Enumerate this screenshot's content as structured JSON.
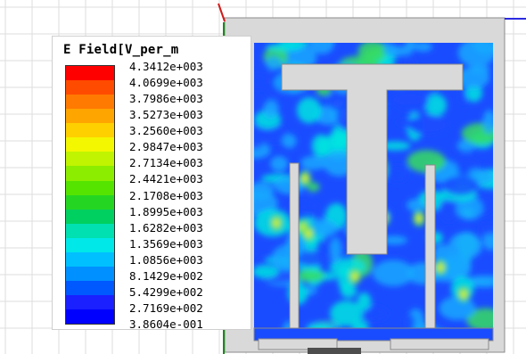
{
  "legend": {
    "title": "E Field[V_per_m",
    "colors": [
      "#ff0000",
      "#ff4b00",
      "#ff7a00",
      "#ffa500",
      "#ffd000",
      "#f3f700",
      "#c0f400",
      "#8ced00",
      "#55e400",
      "#24d622",
      "#00d060",
      "#00e0b0",
      "#00e8e8",
      "#00c0ff",
      "#0090ff",
      "#0058ff",
      "#1a20ff",
      "#0000ff"
    ],
    "labels": [
      "4.3412e+003",
      "4.0699e+003",
      "3.7986e+003",
      "3.5273e+003",
      "3.2560e+003",
      "2.9847e+003",
      "2.7134e+003",
      "2.4421e+003",
      "2.1708e+003",
      "1.8995e+003",
      "1.6282e+003",
      "1.3569e+003",
      "1.0856e+003",
      "8.1429e+002",
      "5.4299e+002",
      "2.7169e+002",
      "3.8604e-001"
    ]
  },
  "field_colors": {
    "low": "#1a4cff",
    "mid": "#18a8ff",
    "cyan": "#00e4e0",
    "green": "#37dc60",
    "yellow": "#e8f23a",
    "metal": "#d9d9d9"
  }
}
